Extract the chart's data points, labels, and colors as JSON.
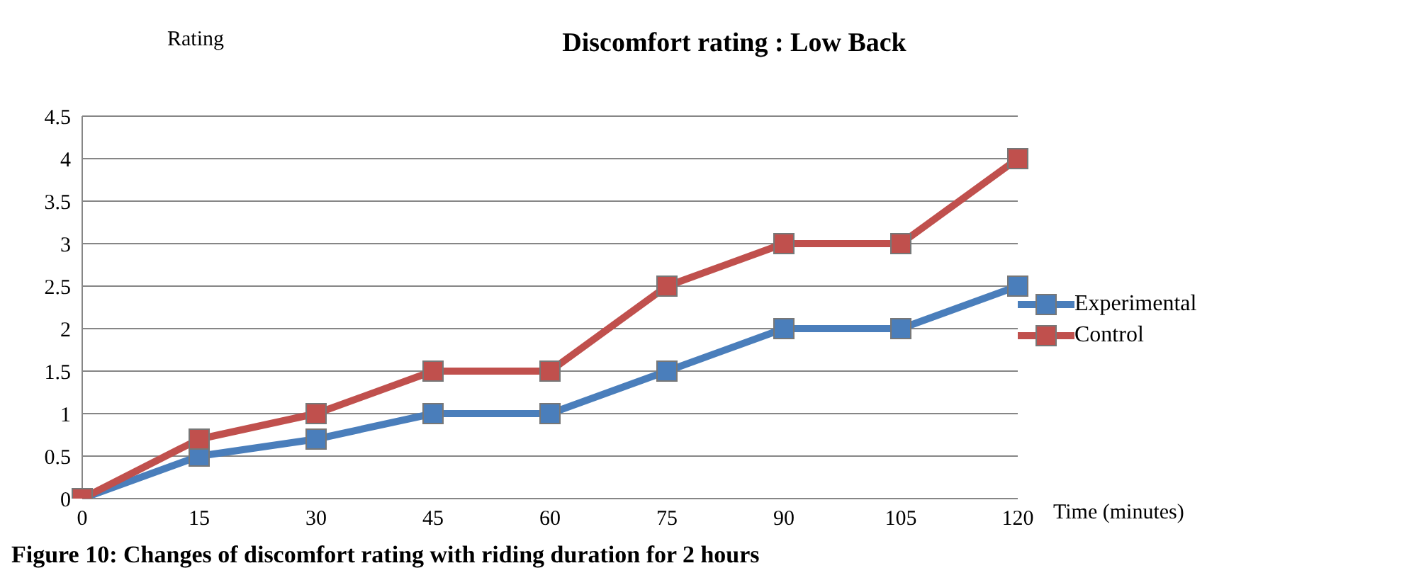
{
  "chart_data": {
    "type": "line",
    "title": "Discomfort rating : Low Back",
    "ylabel": "Rating",
    "xlabel": "Time (minutes)",
    "categories": [
      "0",
      "15",
      "30",
      "45",
      "60",
      "75",
      "90",
      "105",
      "120"
    ],
    "series": [
      {
        "name": "Experimental",
        "color": "#4a7ebb",
        "values": [
          0,
          0.5,
          0.7,
          1,
          1,
          1.5,
          2,
          2,
          2.5
        ]
      },
      {
        "name": "Control",
        "color": "#c0504d",
        "values": [
          0,
          0.7,
          1,
          1.5,
          1.5,
          2.5,
          3,
          3,
          4
        ]
      }
    ],
    "ylim": [
      0,
      4.5
    ],
    "yticks": [
      0,
      0.5,
      1,
      1.5,
      2,
      2.5,
      3,
      3.5,
      4,
      4.5
    ],
    "grid": "y",
    "legend": "right",
    "marker": "square",
    "line_style": "solid",
    "annotations": [
      "Figure 10: Changes of discomfort rating with riding duration for 2 hours"
    ]
  }
}
